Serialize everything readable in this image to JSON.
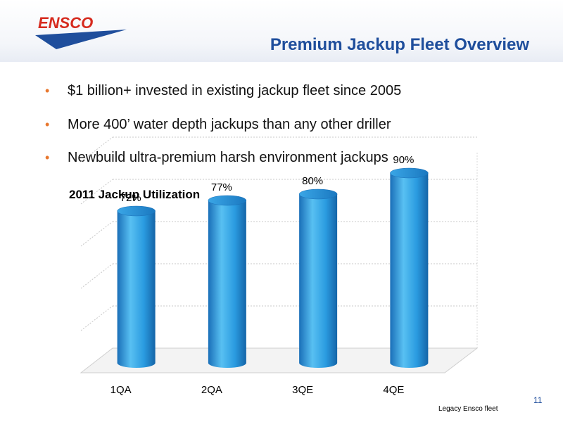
{
  "slide": {
    "title": "Premium Jackup Fleet Overview",
    "page_number": "11",
    "footnote": "Legacy Ensco fleet",
    "logo_text": "ENSCO"
  },
  "colors": {
    "title": "#1f4e9c",
    "bullet_marker": "#e8772e",
    "logo_red": "#d62a1e",
    "logo_blue": "#1f4e9c",
    "bar": "#2a9be0"
  },
  "bullets": [
    {
      "text": "$1 billion+ invested in existing jackup fleet since 2005"
    },
    {
      "text": "More 400’ water depth jackups than any other driller"
    },
    {
      "text": "Newbuild ultra-premium harsh environment jackups"
    }
  ],
  "chart_data": {
    "type": "bar",
    "title": "2011 Jackup Utilization",
    "categories": [
      "1QA",
      "2QA",
      "3QE",
      "4QE"
    ],
    "values": [
      72,
      77,
      80,
      90
    ],
    "value_labels": [
      "72%",
      "77%",
      "80%",
      "90%"
    ],
    "ylim": [
      0,
      100
    ],
    "grid": true,
    "xlabel": "",
    "ylabel": "",
    "style": "3d-cylinder"
  }
}
